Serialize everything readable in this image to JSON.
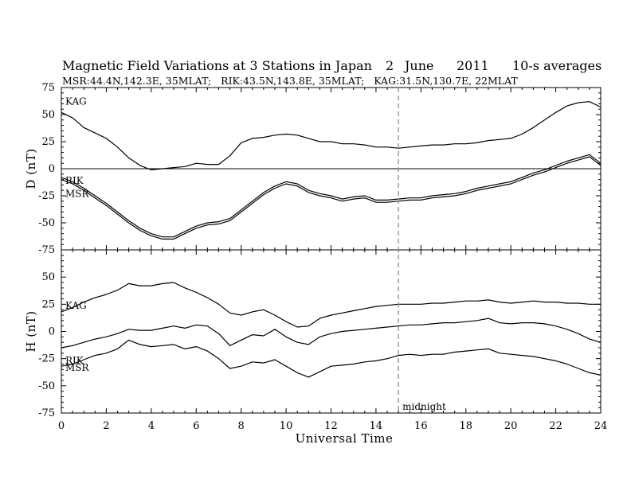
{
  "chart_data": {
    "type": "line",
    "title": "Magnetic Field Variations at 3 Stations in Japan",
    "date": {
      "day": "2",
      "month": "June",
      "year": "2011"
    },
    "averaging": "10-s averages",
    "subtitle": "MSR:44.4N,142.3E, 35MLAT;   RIK:43.5N,143.8E, 35MLAT;   KAG:31.5N,130.7E, 22MLAT",
    "xlabel": "Universal Time",
    "xlim": [
      0,
      24
    ],
    "x_ticks": [
      0,
      2,
      4,
      6,
      8,
      10,
      12,
      14,
      16,
      18,
      20,
      22,
      24
    ],
    "annotations": [
      {
        "text": "midnight",
        "x": 15,
        "style": "dashed vertical line"
      }
    ],
    "panels": [
      {
        "ylabel": "D (nT)",
        "ylim": [
          -75,
          75
        ],
        "y_ticks": [
          75,
          50,
          25,
          0,
          -25,
          -50,
          -75
        ],
        "zero_line": true,
        "series": [
          {
            "name": "KAG",
            "x": [
              0,
              0.5,
              1,
              1.5,
              2,
              2.5,
              3,
              3.5,
              4,
              4.5,
              5,
              5.5,
              6,
              6.5,
              7,
              7.5,
              8,
              8.5,
              9,
              9.5,
              10,
              10.5,
              11,
              11.5,
              12,
              12.5,
              13,
              13.5,
              14,
              14.5,
              15,
              15.5,
              16,
              16.5,
              17,
              17.5,
              18,
              18.5,
              19,
              19.5,
              20,
              20.5,
              21,
              21.5,
              22,
              22.5,
              23,
              23.5,
              24
            ],
            "values": [
              52,
              47,
              38,
              33,
              28,
              20,
              10,
              3,
              -1,
              0,
              1,
              2,
              5,
              4,
              4,
              12,
              24,
              28,
              29,
              31,
              32,
              31,
              28,
              25,
              25,
              23,
              23,
              22,
              20,
              20,
              19,
              20,
              21,
              22,
              22,
              23,
              23,
              24,
              26,
              27,
              28,
              32,
              38,
              45,
              52,
              58,
              61,
              62,
              57
            ]
          },
          {
            "name": "RIK",
            "x": [
              0,
              0.5,
              1,
              1.5,
              2,
              2.5,
              3,
              3.5,
              4,
              4.5,
              5,
              5.5,
              6,
              6.5,
              7,
              7.5,
              8,
              8.5,
              9,
              9.5,
              10,
              10.5,
              11,
              11.5,
              12,
              12.5,
              13,
              13.5,
              14,
              14.5,
              15,
              15.5,
              16,
              16.5,
              17,
              17.5,
              18,
              18.5,
              19,
              19.5,
              20,
              20.5,
              21,
              21.5,
              22,
              22.5,
              23,
              23.5,
              24
            ],
            "values": [
              -8,
              -12,
              -18,
              -25,
              -32,
              -40,
              -48,
              -55,
              -60,
              -63,
              -63,
              -58,
              -53,
              -50,
              -49,
              -46,
              -38,
              -30,
              -22,
              -16,
              -12,
              -14,
              -20,
              -23,
              -25,
              -28,
              -26,
              -25,
              -29,
              -29,
              -28,
              -27,
              -27,
              -25,
              -24,
              -23,
              -21,
              -18,
              -16,
              -14,
              -12,
              -8,
              -4,
              -1,
              3,
              7,
              10,
              13,
              5
            ]
          },
          {
            "name": "MSR",
            "x": [
              0,
              0.5,
              1,
              1.5,
              2,
              2.5,
              3,
              3.5,
              4,
              4.5,
              5,
              5.5,
              6,
              6.5,
              7,
              7.5,
              8,
              8.5,
              9,
              9.5,
              10,
              10.5,
              11,
              11.5,
              12,
              12.5,
              13,
              13.5,
              14,
              14.5,
              15,
              15.5,
              16,
              16.5,
              17,
              17.5,
              18,
              18.5,
              19,
              19.5,
              20,
              20.5,
              21,
              21.5,
              22,
              22.5,
              23,
              23.5,
              24
            ],
            "values": [
              -10,
              -14,
              -20,
              -27,
              -34,
              -42,
              -50,
              -57,
              -62,
              -65,
              -65,
              -60,
              -55,
              -52,
              -51,
              -48,
              -40,
              -32,
              -24,
              -18,
              -14,
              -16,
              -22,
              -25,
              -27,
              -30,
              -28,
              -27,
              -31,
              -31,
              -30,
              -29,
              -29,
              -27,
              -26,
              -25,
              -23,
              -20,
              -18,
              -16,
              -14,
              -10,
              -6,
              -3,
              1,
              5,
              8,
              11,
              3
            ]
          }
        ]
      },
      {
        "ylabel": "H (nT)",
        "ylim": [
          -75,
          75
        ],
        "y_ticks": [
          50,
          25,
          0,
          -25,
          -50,
          -75
        ],
        "zero_line": false,
        "series": [
          {
            "name": "KAG",
            "x": [
              0,
              0.5,
              1,
              1.5,
              2,
              2.5,
              3,
              3.5,
              4,
              4.5,
              5,
              5.5,
              6,
              6.5,
              7,
              7.5,
              8,
              8.5,
              9,
              9.5,
              10,
              10.5,
              11,
              11.5,
              12,
              12.5,
              13,
              13.5,
              14,
              14.5,
              15,
              15.5,
              16,
              16.5,
              17,
              17.5,
              18,
              18.5,
              19,
              19.5,
              20,
              20.5,
              21,
              21.5,
              22,
              22.5,
              23,
              23.5,
              24
            ],
            "values": [
              18,
              22,
              27,
              31,
              34,
              38,
              44,
              42,
              42,
              44,
              45,
              40,
              36,
              31,
              25,
              17,
              15,
              18,
              20,
              15,
              9,
              4,
              5,
              12,
              15,
              17,
              19,
              21,
              23,
              24,
              25,
              25,
              25,
              26,
              26,
              27,
              28,
              28,
              29,
              27,
              26,
              27,
              28,
              27,
              27,
              26,
              26,
              25,
              25
            ]
          },
          {
            "name": "RIK",
            "x": [
              0,
              0.5,
              1,
              1.5,
              2,
              2.5,
              3,
              3.5,
              4,
              4.5,
              5,
              5.5,
              6,
              6.5,
              7,
              7.5,
              8,
              8.5,
              9,
              9.5,
              10,
              10.5,
              11,
              11.5,
              12,
              12.5,
              13,
              13.5,
              14,
              14.5,
              15,
              15.5,
              16,
              16.5,
              17,
              17.5,
              18,
              18.5,
              19,
              19.5,
              20,
              20.5,
              21,
              21.5,
              22,
              22.5,
              23,
              23.5,
              24
            ],
            "values": [
              -15,
              -13,
              -10,
              -7,
              -5,
              -2,
              2,
              1,
              1,
              3,
              5,
              3,
              6,
              5,
              -2,
              -13,
              -8,
              -3,
              -4,
              2,
              -5,
              -10,
              -12,
              -5,
              -2,
              0,
              1,
              2,
              3,
              4,
              5,
              6,
              6,
              7,
              8,
              8,
              9,
              10,
              12,
              8,
              7,
              8,
              8,
              7,
              5,
              2,
              -2,
              -7,
              -10
            ]
          },
          {
            "name": "MSR",
            "x": [
              0,
              0.5,
              1,
              1.5,
              2,
              2.5,
              3,
              3.5,
              4,
              4.5,
              5,
              5.5,
              6,
              6.5,
              7,
              7.5,
              8,
              8.5,
              9,
              9.5,
              10,
              10.5,
              11,
              11.5,
              12,
              12.5,
              13,
              13.5,
              14,
              14.5,
              15,
              15.5,
              16,
              16.5,
              17,
              17.5,
              18,
              18.5,
              19,
              19.5,
              20,
              20.5,
              21,
              21.5,
              22,
              22.5,
              23,
              23.5,
              24
            ],
            "values": [
              -32,
              -30,
              -26,
              -22,
              -20,
              -16,
              -8,
              -12,
              -14,
              -13,
              -12,
              -16,
              -14,
              -18,
              -25,
              -34,
              -32,
              -28,
              -29,
              -26,
              -32,
              -38,
              -42,
              -37,
              -32,
              -31,
              -30,
              -28,
              -27,
              -25,
              -22,
              -21,
              -22,
              -21,
              -21,
              -19,
              -18,
              -17,
              -16,
              -20,
              -21,
              -22,
              -23,
              -25,
              -27,
              -30,
              -34,
              -38,
              -40
            ]
          }
        ]
      }
    ]
  }
}
